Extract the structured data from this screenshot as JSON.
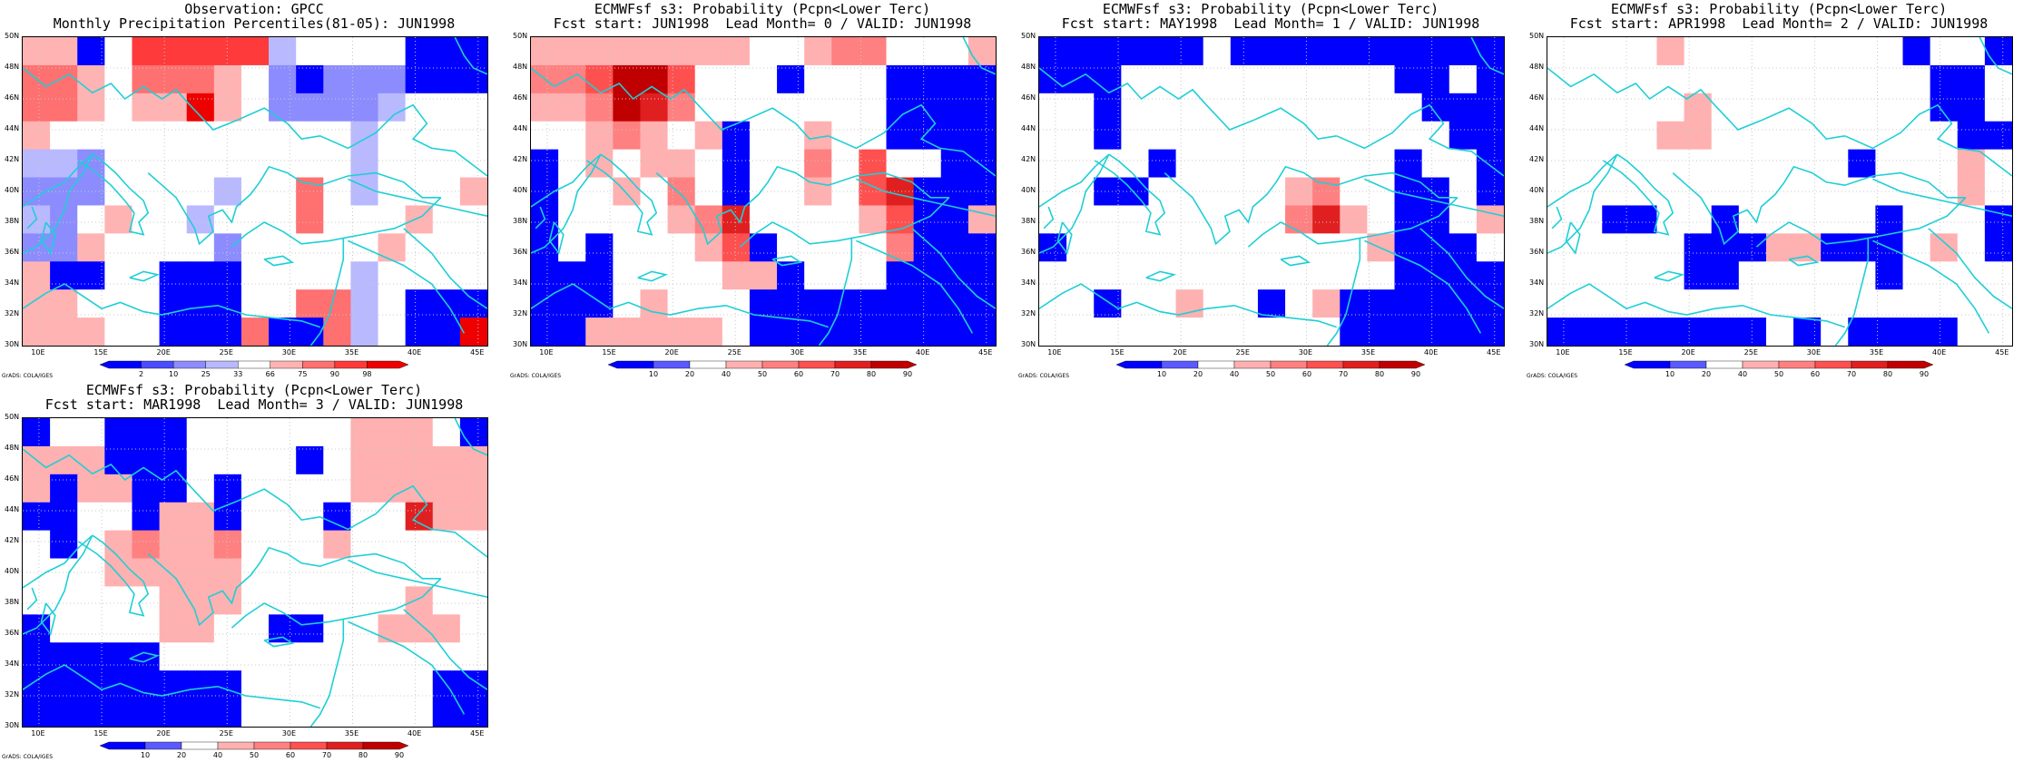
{
  "lat_labels": [
    "50N",
    "48N",
    "46N",
    "44N",
    "42N",
    "40N",
    "38N",
    "36N",
    "34N",
    "32N",
    "30N"
  ],
  "lon_labels": [
    "10E",
    "15E",
    "20E",
    "25E",
    "30E",
    "35E",
    "40E",
    "45E"
  ],
  "credit": "GrADS: COLA/IGES",
  "colors": {
    "coast": "#1ecfd6",
    "obs_scale": [
      "#0000ff",
      "#4b4bff",
      "#8c8cff",
      "#b9b9ff",
      "#ffffff",
      "#ffb3b3",
      "#ff7070",
      "#ff3a3a",
      "#ee0000"
    ],
    "prob_scale": [
      "#0000ff",
      "#5a5aff",
      "#ffffff",
      "#ffb0b0",
      "#ff8080",
      "#ff5050",
      "#e02020",
      "#c00000"
    ]
  },
  "panels": [
    {
      "title1": "Observation: GPCC",
      "title2": "Monthly Precipitation Percentiles(81-05): JUN1998",
      "colorbar_labels": [
        "2",
        "10",
        "25",
        "33",
        "66",
        "75",
        "90",
        "98"
      ],
      "chart_data": {
        "type": "heatmap",
        "palette": "obs_scale",
        "grid": [
          [
            5,
            5,
            0,
            4,
            7,
            7,
            7,
            7,
            7,
            3,
            4,
            4,
            4,
            4,
            0,
            0,
            0
          ],
          [
            6,
            6,
            5,
            4,
            6,
            6,
            6,
            5,
            4,
            2,
            0,
            2,
            2,
            2,
            0,
            0,
            0
          ],
          [
            6,
            6,
            5,
            4,
            5,
            5,
            8,
            5,
            4,
            2,
            2,
            2,
            2,
            3,
            4,
            4,
            4
          ],
          [
            5,
            4,
            4,
            4,
            4,
            4,
            4,
            4,
            4,
            4,
            4,
            4,
            3,
            4,
            4,
            4,
            4
          ],
          [
            3,
            3,
            2,
            4,
            4,
            4,
            4,
            4,
            4,
            4,
            4,
            4,
            3,
            4,
            4,
            4,
            4
          ],
          [
            2,
            2,
            2,
            4,
            4,
            4,
            4,
            3,
            4,
            4,
            6,
            4,
            3,
            4,
            4,
            4,
            5
          ],
          [
            3,
            2,
            4,
            5,
            4,
            4,
            3,
            4,
            4,
            4,
            6,
            4,
            4,
            4,
            5,
            4,
            4
          ],
          [
            2,
            2,
            5,
            4,
            4,
            4,
            4,
            2,
            4,
            4,
            4,
            4,
            4,
            5,
            4,
            4,
            4
          ],
          [
            5,
            0,
            0,
            4,
            4,
            0,
            0,
            0,
            4,
            4,
            4,
            4,
            3,
            4,
            4,
            4,
            4
          ],
          [
            5,
            5,
            4,
            4,
            4,
            0,
            0,
            0,
            4,
            4,
            6,
            6,
            3,
            4,
            0,
            0,
            0
          ],
          [
            5,
            5,
            5,
            4,
            4,
            0,
            0,
            0,
            6,
            0,
            0,
            6,
            3,
            4,
            0,
            0,
            8
          ]
        ]
      }
    },
    {
      "title1": "ECMWFsf s3: Probability (Pcpn<Lower Terc)",
      "title2": "Fcst start: JUN1998  Lead Month= 0 / VALID: JUN1998",
      "colorbar_labels": [
        "10",
        "20",
        "40",
        "50",
        "60",
        "70",
        "80",
        "90"
      ],
      "chart_data": {
        "type": "heatmap",
        "palette": "prob_scale",
        "grid": [
          [
            3,
            3,
            3,
            3,
            3,
            3,
            3,
            3,
            2,
            2,
            3,
            4,
            4,
            2,
            2,
            2,
            3
          ],
          [
            4,
            4,
            5,
            7,
            7,
            5,
            2,
            2,
            2,
            0,
            2,
            2,
            2,
            0,
            0,
            0,
            0
          ],
          [
            3,
            3,
            4,
            7,
            6,
            4,
            2,
            2,
            2,
            2,
            2,
            2,
            2,
            0,
            0,
            0,
            0
          ],
          [
            2,
            2,
            3,
            4,
            3,
            2,
            3,
            0,
            2,
            2,
            3,
            2,
            2,
            0,
            0,
            0,
            0
          ],
          [
            0,
            2,
            3,
            2,
            3,
            3,
            2,
            0,
            2,
            2,
            4,
            2,
            5,
            2,
            2,
            0,
            0
          ],
          [
            0,
            2,
            2,
            3,
            2,
            4,
            2,
            0,
            2,
            2,
            3,
            2,
            5,
            6,
            0,
            0,
            0
          ],
          [
            0,
            2,
            2,
            2,
            2,
            3,
            4,
            6,
            2,
            2,
            2,
            2,
            3,
            5,
            0,
            0,
            3
          ],
          [
            0,
            2,
            0,
            2,
            2,
            2,
            3,
            5,
            0,
            2,
            2,
            2,
            2,
            4,
            0,
            0,
            0
          ],
          [
            0,
            0,
            0,
            2,
            2,
            2,
            2,
            3,
            3,
            0,
            2,
            2,
            2,
            0,
            0,
            0,
            0
          ],
          [
            0,
            0,
            0,
            2,
            3,
            2,
            2,
            2,
            0,
            0,
            0,
            0,
            0,
            0,
            0,
            0,
            0
          ],
          [
            0,
            0,
            3,
            3,
            3,
            3,
            3,
            2,
            0,
            0,
            0,
            0,
            0,
            0,
            0,
            0,
            0
          ]
        ]
      }
    },
    {
      "title1": "ECMWFsf s3: Probability (Pcpn<Lower Terc)",
      "title2": "Fcst start: MAY1998  Lead Month= 1 / VALID: JUN1998",
      "colorbar_labels": [
        "10",
        "20",
        "40",
        "50",
        "60",
        "70",
        "80",
        "90"
      ],
      "chart_data": {
        "type": "heatmap",
        "palette": "prob_scale",
        "grid": [
          [
            0,
            0,
            0,
            0,
            0,
            0,
            2,
            0,
            0,
            0,
            0,
            0,
            0,
            0,
            0,
            0,
            0
          ],
          [
            0,
            0,
            0,
            2,
            2,
            2,
            2,
            2,
            2,
            2,
            2,
            2,
            2,
            0,
            0,
            2,
            0
          ],
          [
            2,
            2,
            0,
            2,
            2,
            2,
            2,
            2,
            2,
            2,
            2,
            2,
            2,
            2,
            0,
            0,
            0
          ],
          [
            2,
            2,
            0,
            2,
            2,
            2,
            2,
            2,
            2,
            2,
            2,
            2,
            2,
            2,
            2,
            0,
            0
          ],
          [
            2,
            2,
            2,
            2,
            0,
            2,
            2,
            2,
            2,
            2,
            2,
            2,
            2,
            0,
            2,
            2,
            0
          ],
          [
            2,
            2,
            0,
            0,
            2,
            2,
            2,
            2,
            2,
            3,
            4,
            2,
            2,
            0,
            0,
            2,
            0
          ],
          [
            2,
            2,
            2,
            2,
            2,
            2,
            2,
            2,
            2,
            4,
            6,
            3,
            2,
            0,
            0,
            2,
            3
          ],
          [
            0,
            2,
            2,
            2,
            2,
            2,
            2,
            2,
            2,
            2,
            2,
            2,
            3,
            0,
            0,
            0,
            2
          ],
          [
            2,
            2,
            2,
            2,
            2,
            2,
            2,
            2,
            2,
            2,
            2,
            2,
            2,
            0,
            0,
            0,
            0
          ],
          [
            2,
            2,
            0,
            2,
            2,
            3,
            2,
            2,
            0,
            2,
            3,
            0,
            0,
            0,
            0,
            0,
            0
          ],
          [
            2,
            2,
            2,
            2,
            2,
            2,
            2,
            2,
            2,
            2,
            2,
            0,
            0,
            0,
            0,
            0,
            0
          ]
        ]
      }
    },
    {
      "title1": "ECMWFsf s3: Probability (Pcpn<Lower Terc)",
      "title2": "Fcst start: APR1998  Lead Month= 2 / VALID: JUN1998",
      "colorbar_labels": [
        "10",
        "20",
        "40",
        "50",
        "60",
        "70",
        "80",
        "90"
      ],
      "chart_data": {
        "type": "heatmap",
        "palette": "prob_scale",
        "grid": [
          [
            2,
            2,
            2,
            2,
            3,
            2,
            2,
            2,
            2,
            2,
            2,
            2,
            2,
            0,
            2,
            2,
            0
          ],
          [
            2,
            2,
            2,
            2,
            2,
            2,
            2,
            2,
            2,
            2,
            2,
            2,
            2,
            2,
            0,
            0,
            2
          ],
          [
            2,
            2,
            2,
            2,
            2,
            3,
            2,
            2,
            2,
            2,
            2,
            2,
            2,
            2,
            0,
            0,
            2
          ],
          [
            2,
            2,
            2,
            2,
            3,
            3,
            2,
            2,
            2,
            2,
            2,
            2,
            2,
            2,
            2,
            0,
            0
          ],
          [
            2,
            2,
            2,
            2,
            2,
            2,
            2,
            2,
            2,
            2,
            2,
            0,
            2,
            2,
            2,
            3,
            2
          ],
          [
            2,
            2,
            2,
            2,
            2,
            2,
            2,
            2,
            2,
            2,
            2,
            2,
            2,
            2,
            2,
            3,
            2
          ],
          [
            2,
            2,
            0,
            0,
            2,
            2,
            0,
            2,
            2,
            2,
            2,
            2,
            0,
            2,
            2,
            2,
            0
          ],
          [
            2,
            2,
            2,
            2,
            2,
            0,
            0,
            0,
            3,
            3,
            0,
            0,
            0,
            2,
            3,
            2,
            0
          ],
          [
            2,
            2,
            2,
            2,
            2,
            0,
            0,
            2,
            2,
            2,
            2,
            2,
            0,
            2,
            2,
            2,
            2
          ],
          [
            2,
            2,
            2,
            2,
            2,
            2,
            2,
            2,
            2,
            2,
            2,
            2,
            2,
            2,
            2,
            2,
            2
          ],
          [
            0,
            0,
            0,
            0,
            0,
            0,
            0,
            0,
            2,
            0,
            2,
            0,
            0,
            0,
            0,
            2,
            2
          ]
        ]
      }
    },
    {
      "title1": "ECMWFsf s3: Probability (Pcpn<Lower Terc)",
      "title2": "Fcst start: MAR1998  Lead Month= 3 / VALID: JUN1998",
      "colorbar_labels": [
        "10",
        "20",
        "40",
        "50",
        "60",
        "70",
        "80",
        "90"
      ],
      "chart_data": {
        "type": "heatmap",
        "palette": "prob_scale",
        "grid": [
          [
            0,
            2,
            2,
            0,
            0,
            0,
            2,
            2,
            2,
            2,
            2,
            2,
            3,
            3,
            3,
            2,
            0
          ],
          [
            3,
            3,
            3,
            0,
            0,
            0,
            2,
            2,
            2,
            2,
            0,
            2,
            3,
            3,
            3,
            3,
            3
          ],
          [
            3,
            0,
            3,
            3,
            0,
            0,
            2,
            0,
            2,
            2,
            2,
            2,
            3,
            3,
            3,
            3,
            3
          ],
          [
            0,
            0,
            2,
            2,
            0,
            3,
            3,
            0,
            2,
            2,
            2,
            0,
            2,
            2,
            6,
            3,
            3
          ],
          [
            2,
            0,
            2,
            3,
            4,
            3,
            3,
            4,
            2,
            2,
            2,
            3,
            2,
            2,
            2,
            2,
            2
          ],
          [
            2,
            2,
            2,
            3,
            3,
            3,
            3,
            3,
            2,
            2,
            2,
            2,
            2,
            2,
            2,
            2,
            2
          ],
          [
            2,
            2,
            2,
            2,
            2,
            3,
            3,
            3,
            2,
            2,
            2,
            2,
            2,
            2,
            3,
            2,
            2
          ],
          [
            0,
            2,
            2,
            2,
            2,
            3,
            3,
            2,
            2,
            0,
            0,
            2,
            2,
            3,
            3,
            3,
            2
          ],
          [
            0,
            0,
            0,
            0,
            0,
            2,
            2,
            2,
            2,
            2,
            2,
            2,
            2,
            2,
            2,
            2,
            2
          ],
          [
            0,
            0,
            0,
            0,
            0,
            0,
            0,
            0,
            2,
            2,
            2,
            2,
            2,
            2,
            2,
            0,
            0
          ],
          [
            0,
            0,
            0,
            0,
            0,
            0,
            0,
            0,
            2,
            2,
            2,
            2,
            2,
            2,
            2,
            0,
            0
          ]
        ]
      }
    }
  ]
}
